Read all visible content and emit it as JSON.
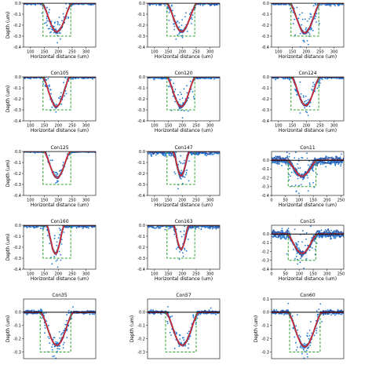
{
  "chart_data": {
    "type": "scatter",
    "layout": "grid-5x3",
    "colors": {
      "measured": "#1f77d4",
      "measured_dark": "#2b4f9e",
      "mean": "#d62728",
      "target_profile": "#2ca02c",
      "surface": "#000000"
    },
    "panels": [
      {
        "title": "",
        "xlabel": "Horizontal distance (um)",
        "ylabel": "Depth (um)",
        "xlim": [
          75,
          335
        ],
        "ylim": [
          -0.4,
          0.0
        ],
        "xticks": [
          100,
          150,
          200,
          250,
          300
        ],
        "yticks": [
          0.0,
          -0.1,
          -0.2,
          -0.3,
          -0.4
        ],
        "groove": {
          "center": 195,
          "half_width": 55,
          "depth": 0.26
        },
        "target": {
          "x0": 145,
          "x1": 245,
          "depth": 0.3
        },
        "scatter": 0.03
      },
      {
        "title": "",
        "xlabel": "Horizontal distance (um)",
        "ylabel": "",
        "xlim": [
          75,
          335
        ],
        "ylim": [
          -0.4,
          0.0
        ],
        "xticks": [
          100,
          150,
          200,
          250,
          300
        ],
        "yticks": [
          0.0,
          -0.1,
          -0.2,
          -0.3,
          -0.4
        ],
        "groove": {
          "center": 198,
          "half_width": 55,
          "depth": 0.26
        },
        "target": {
          "x0": 145,
          "x1": 245,
          "depth": 0.3
        },
        "scatter": 0.035
      },
      {
        "title": "",
        "xlabel": "Horizontal distance (um)",
        "ylabel": "",
        "xlim": [
          75,
          335
        ],
        "ylim": [
          -0.4,
          0.0
        ],
        "xticks": [
          100,
          150,
          200,
          250,
          300
        ],
        "yticks": [
          0.0,
          -0.1,
          -0.2,
          -0.3,
          -0.4
        ],
        "groove": {
          "center": 195,
          "half_width": 55,
          "depth": 0.27
        },
        "target": {
          "x0": 145,
          "x1": 245,
          "depth": 0.3
        },
        "scatter": 0.04
      },
      {
        "title": "Con105",
        "xlabel": "Horizontal distance (um)",
        "ylabel": "Depth (um)",
        "xlim": [
          75,
          335
        ],
        "ylim": [
          -0.4,
          0.0
        ],
        "xticks": [
          100,
          150,
          200,
          250,
          300
        ],
        "yticks": [
          0.0,
          -0.1,
          -0.2,
          -0.3,
          -0.4
        ],
        "groove": {
          "center": 193,
          "half_width": 50,
          "depth": 0.27
        },
        "target": {
          "x0": 145,
          "x1": 245,
          "depth": 0.3
        },
        "scatter": 0.035
      },
      {
        "title": "Con120",
        "xlabel": "Horizontal distance (um)",
        "ylabel": "",
        "xlim": [
          75,
          335
        ],
        "ylim": [
          -0.4,
          0.0
        ],
        "xticks": [
          100,
          150,
          200,
          250,
          300
        ],
        "yticks": [
          0.0,
          -0.1,
          -0.2,
          -0.3,
          -0.4
        ],
        "groove": {
          "center": 196,
          "half_width": 52,
          "depth": 0.27
        },
        "target": {
          "x0": 145,
          "x1": 245,
          "depth": 0.3
        },
        "scatter": 0.04
      },
      {
        "title": "Con124",
        "xlabel": "Horizontal distance (um)",
        "ylabel": "",
        "xlim": [
          75,
          335
        ],
        "ylim": [
          -0.4,
          0.0
        ],
        "xticks": [
          100,
          150,
          200,
          250,
          300
        ],
        "yticks": [
          0.0,
          -0.1,
          -0.2,
          -0.3,
          -0.4
        ],
        "groove": {
          "center": 198,
          "half_width": 52,
          "depth": 0.26
        },
        "target": {
          "x0": 145,
          "x1": 245,
          "depth": 0.3
        },
        "scatter": 0.035
      },
      {
        "title": "Con125",
        "xlabel": "Horizontal distance (um)",
        "ylabel": "Depth (um)",
        "xlim": [
          75,
          335
        ],
        "ylim": [
          -0.4,
          0.0
        ],
        "xticks": [
          100,
          150,
          200,
          250,
          300
        ],
        "yticks": [
          0.0,
          -0.1,
          -0.2,
          -0.3,
          -0.4
        ],
        "groove": {
          "center": 196,
          "half_width": 48,
          "depth": 0.24
        },
        "target": {
          "x0": 145,
          "x1": 245,
          "depth": 0.3
        },
        "scatter": 0.02
      },
      {
        "title": "Con147",
        "xlabel": "Horizontal distance (um)",
        "ylabel": "",
        "xlim": [
          75,
          335
        ],
        "ylim": [
          -0.4,
          0.0
        ],
        "xticks": [
          100,
          150,
          200,
          250,
          300
        ],
        "yticks": [
          0.0,
          -0.1,
          -0.2,
          -0.3,
          -0.4
        ],
        "groove": {
          "center": 196,
          "half_width": 30,
          "depth": 0.22
        },
        "target": {
          "x0": 145,
          "x1": 245,
          "depth": 0.3
        },
        "scatter": 0.08
      },
      {
        "title": "Con11",
        "xlabel": "Horizontal distance (um)",
        "ylabel": "",
        "xlim": [
          0,
          260
        ],
        "ylim": [
          -0.4,
          0.1
        ],
        "xticks": [
          0,
          50,
          100,
          150,
          200,
          250
        ],
        "yticks": [
          0.0,
          -0.1,
          -0.2,
          -0.3,
          -0.4
        ],
        "groove": {
          "center": 110,
          "half_width": 55,
          "depth": 0.18
        },
        "target": {
          "x0": 60,
          "x1": 160,
          "depth": 0.3
        },
        "scatter": 0.1
      },
      {
        "title": "Con160",
        "xlabel": "Horizontal distance (um)",
        "ylabel": "Depth (um)",
        "xlim": [
          75,
          335
        ],
        "ylim": [
          -0.4,
          0.0
        ],
        "xticks": [
          100,
          150,
          200,
          250,
          300
        ],
        "yticks": [
          0.0,
          -0.1,
          -0.2,
          -0.3,
          -0.4
        ],
        "groove": {
          "center": 190,
          "half_width": 32,
          "depth": 0.26
        },
        "target": {
          "x0": 145,
          "x1": 245,
          "depth": 0.3
        },
        "scatter": 0.05
      },
      {
        "title": "Con163",
        "xlabel": "Horizontal distance (um)",
        "ylabel": "",
        "xlim": [
          75,
          335
        ],
        "ylim": [
          -0.4,
          0.0
        ],
        "xticks": [
          100,
          150,
          200,
          250,
          300
        ],
        "yticks": [
          0.0,
          -0.1,
          -0.2,
          -0.3,
          -0.4
        ],
        "groove": {
          "center": 196,
          "half_width": 28,
          "depth": 0.22
        },
        "target": {
          "x0": 145,
          "x1": 245,
          "depth": 0.3
        },
        "scatter": 0.06
      },
      {
        "title": "Con15",
        "xlabel": "Horizontal distance (um)",
        "ylabel": "",
        "xlim": [
          0,
          260
        ],
        "ylim": [
          -0.4,
          0.1
        ],
        "xticks": [
          0,
          50,
          100,
          150,
          200,
          250
        ],
        "yticks": [
          0.0,
          -0.1,
          -0.2,
          -0.3,
          -0.4
        ],
        "groove": {
          "center": 110,
          "half_width": 55,
          "depth": 0.22
        },
        "target": {
          "x0": 60,
          "x1": 160,
          "depth": 0.3
        },
        "scatter": 0.09
      },
      {
        "title": "Con35",
        "xlabel": "",
        "ylabel": "Depth (um)",
        "xlim": [
          75,
          335
        ],
        "ylim": [
          -0.35,
          0.1
        ],
        "xticks": [],
        "yticks": [
          0.0,
          -0.1,
          -0.2,
          -0.3
        ],
        "groove": {
          "center": 195,
          "half_width": 60,
          "depth": 0.25
        },
        "target": {
          "x0": 135,
          "x1": 245,
          "depth": 0.3
        },
        "scatter": 0.025
      },
      {
        "title": "Con57",
        "xlabel": "",
        "ylabel": "Depth (um)",
        "xlim": [
          75,
          335
        ],
        "ylim": [
          -0.35,
          0.1
        ],
        "xticks": [],
        "yticks": [
          0.0,
          -0.1,
          -0.2,
          -0.3
        ],
        "groove": {
          "center": 200,
          "half_width": 60,
          "depth": 0.25
        },
        "target": {
          "x0": 140,
          "x1": 250,
          "depth": 0.3
        },
        "scatter": 0.025
      },
      {
        "title": "Con60",
        "xlabel": "",
        "ylabel": "Depth (um)",
        "xlim": [
          75,
          335
        ],
        "ylim": [
          -0.35,
          0.1
        ],
        "xticks": [],
        "yticks": [
          0.1,
          0.0,
          -0.1,
          -0.2,
          -0.3
        ],
        "groove": {
          "center": 195,
          "half_width": 62,
          "depth": 0.26
        },
        "target": {
          "x0": 140,
          "x1": 250,
          "depth": 0.3
        },
        "scatter": 0.03
      }
    ]
  }
}
